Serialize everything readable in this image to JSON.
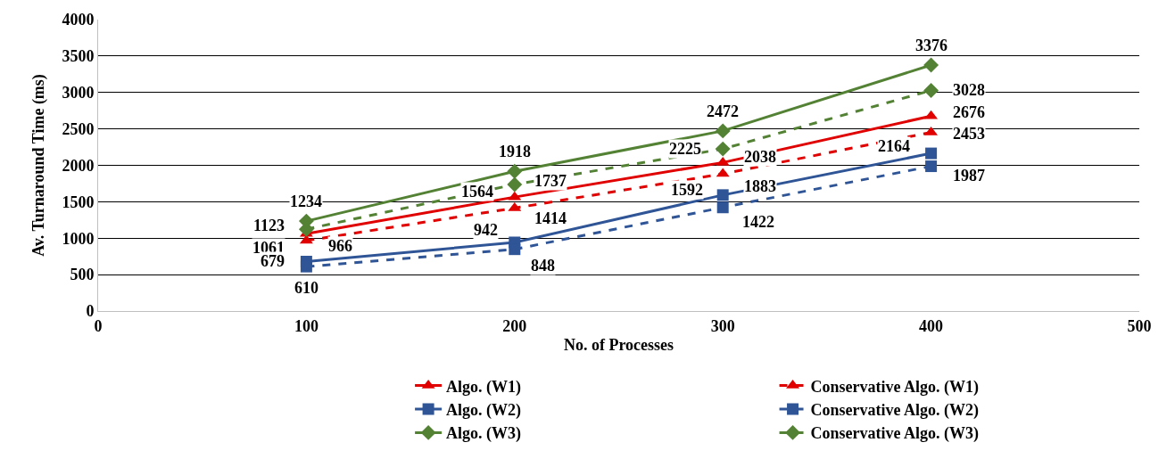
{
  "chart_data": {
    "type": "line",
    "xlabel": "No. of Processes",
    "ylabel": "Av. Turnaround Time (ms)",
    "x": [
      100,
      200,
      300,
      400
    ],
    "series": [
      {
        "name": "Algo. (W1)",
        "color": "#e00000",
        "line_style": "solid",
        "marker": "triangle",
        "values": [
          1061,
          1564,
          2038,
          2676
        ]
      },
      {
        "name": "Conservative Algo. (W1)",
        "color": "#e00000",
        "line_style": "dashed",
        "marker": "triangle",
        "values": [
          966,
          1414,
          1883,
          2453
        ]
      },
      {
        "name": "Algo. (W2)",
        "color": "#2f5597",
        "line_style": "solid",
        "marker": "square",
        "values": [
          679,
          942,
          1592,
          2164
        ]
      },
      {
        "name": "Conservative Algo. (W2)",
        "color": "#2f5597",
        "line_style": "dashed",
        "marker": "square",
        "values": [
          610,
          848,
          1422,
          1987
        ]
      },
      {
        "name": "Algo. (W3)",
        "color": "#548235",
        "line_style": "solid",
        "marker": "diamond",
        "values": [
          1234,
          1918,
          2472,
          3376
        ]
      },
      {
        "name": "Conservative Algo. (W3)",
        "color": "#548235",
        "line_style": "dashed",
        "marker": "diamond",
        "values": [
          1123,
          1737,
          2225,
          3028
        ]
      }
    ],
    "xlim": [
      0,
      500
    ],
    "xticks": [
      0,
      100,
      200,
      300,
      400,
      500
    ],
    "ylim": [
      0,
      4000
    ],
    "yticks": [
      0,
      500,
      1000,
      1500,
      2000,
      2500,
      3000,
      3500,
      4000
    ],
    "grid": "y",
    "legend": "bottom",
    "data_labels": true
  }
}
